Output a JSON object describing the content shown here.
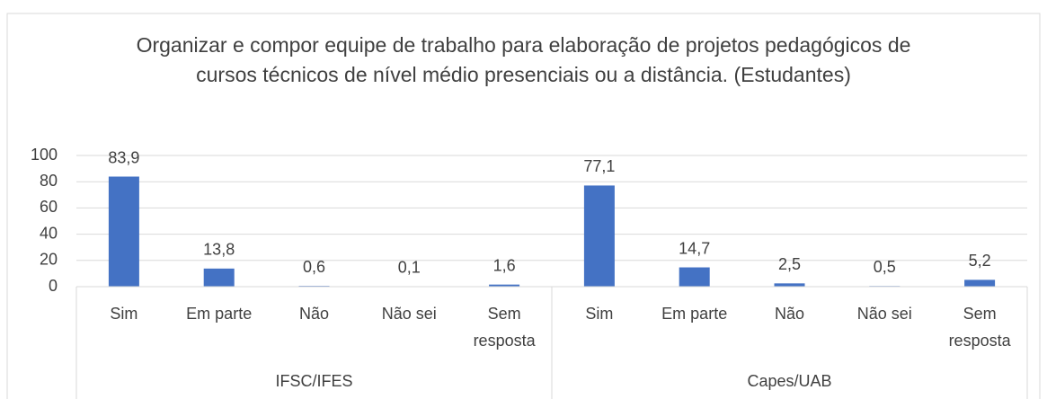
{
  "chart_data": {
    "type": "bar",
    "title": "Organizar e compor equipe de trabalho para elaboração de projetos pedagógicos de cursos técnicos de nível médio presenciais ou a distância. (Estudantes)",
    "groups": [
      {
        "label": "IFSC/IFES",
        "categories": [
          "Sim",
          "Em parte",
          "Não",
          "Não sei",
          "Sem resposta"
        ],
        "values": [
          83.9,
          13.8,
          0.6,
          0.1,
          1.6
        ],
        "value_labels": [
          "83,9",
          "13,8",
          "0,6",
          "0,1",
          "1,6"
        ]
      },
      {
        "label": "Capes/UAB",
        "categories": [
          "Sim",
          "Em parte",
          "Não",
          "Não sei",
          "Sem resposta"
        ],
        "values": [
          77.1,
          14.7,
          2.5,
          0.5,
          5.2
        ],
        "value_labels": [
          "77,1",
          "14,7",
          "2,5",
          "0,5",
          "5,2"
        ]
      }
    ],
    "color": "#4472c4",
    "ylim": [
      0,
      100
    ],
    "yticks": [
      0,
      20,
      40,
      60,
      80,
      100
    ],
    "grid": true
  }
}
